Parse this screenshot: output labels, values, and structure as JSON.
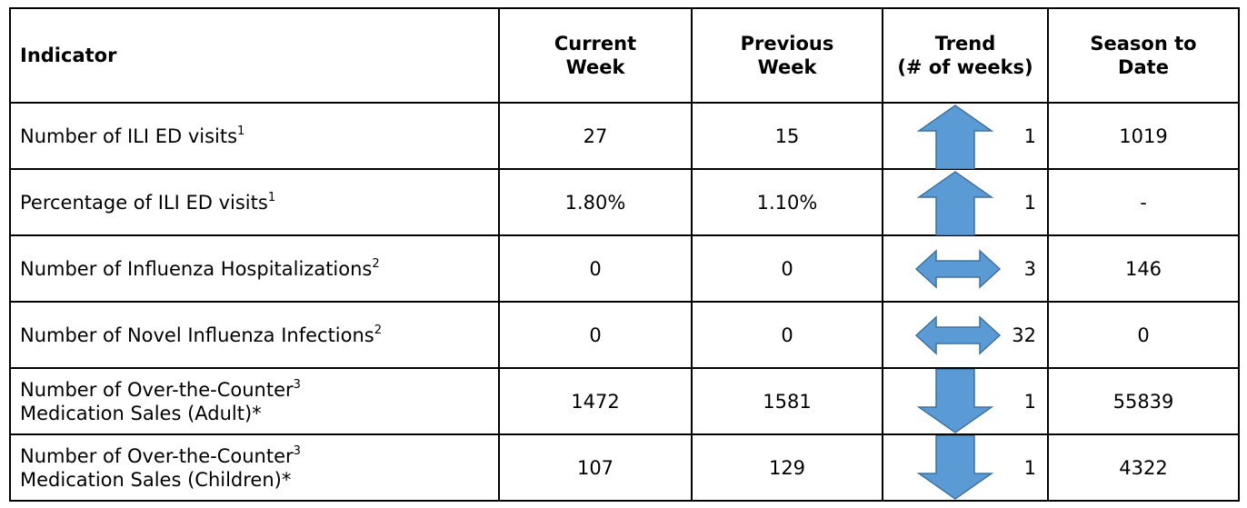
{
  "header": {
    "indicator": "Indicator",
    "current": [
      "Current",
      "Week"
    ],
    "previous": [
      "Previous",
      "Week"
    ],
    "trend": [
      "Trend",
      "(# of weeks)"
    ],
    "season": [
      "Season to",
      "Date"
    ]
  },
  "rows": [
    {
      "indicator": {
        "text": "Number of ILI ED visits",
        "sup": "1"
      },
      "current": "27",
      "previous": "15",
      "trend": {
        "direction": "up",
        "weeks": "1"
      },
      "season": "1019"
    },
    {
      "indicator": {
        "text": "Percentage of ILI ED visits",
        "sup": "1"
      },
      "current": "1.80%",
      "previous": "1.10%",
      "trend": {
        "direction": "up",
        "weeks": "1"
      },
      "season": "-"
    },
    {
      "indicator": {
        "text": "Number of Influenza Hospitalizations",
        "sup": "2"
      },
      "current": "0",
      "previous": "0",
      "trend": {
        "direction": "flat",
        "weeks": "3"
      },
      "season": "146"
    },
    {
      "indicator": {
        "text": "Number of Novel Influenza Infections",
        "sup": "2"
      },
      "current": "0",
      "previous": "0",
      "trend": {
        "direction": "flat",
        "weeks": "32"
      },
      "season": "0"
    },
    {
      "indicator": {
        "text": "Number of Over-the-Counter",
        "sup": "3",
        "text2": "Medication Sales (Adult)*"
      },
      "current": "1472",
      "previous": "1581",
      "trend": {
        "direction": "down",
        "weeks": "1"
      },
      "season": "55839"
    },
    {
      "indicator": {
        "text": "Number of Over-the-Counter",
        "sup": "3",
        "text2": "Medication Sales (Children)*"
      },
      "current": "107",
      "previous": "129",
      "trend": {
        "direction": "down",
        "weeks": "1"
      },
      "season": "4322"
    }
  ]
}
